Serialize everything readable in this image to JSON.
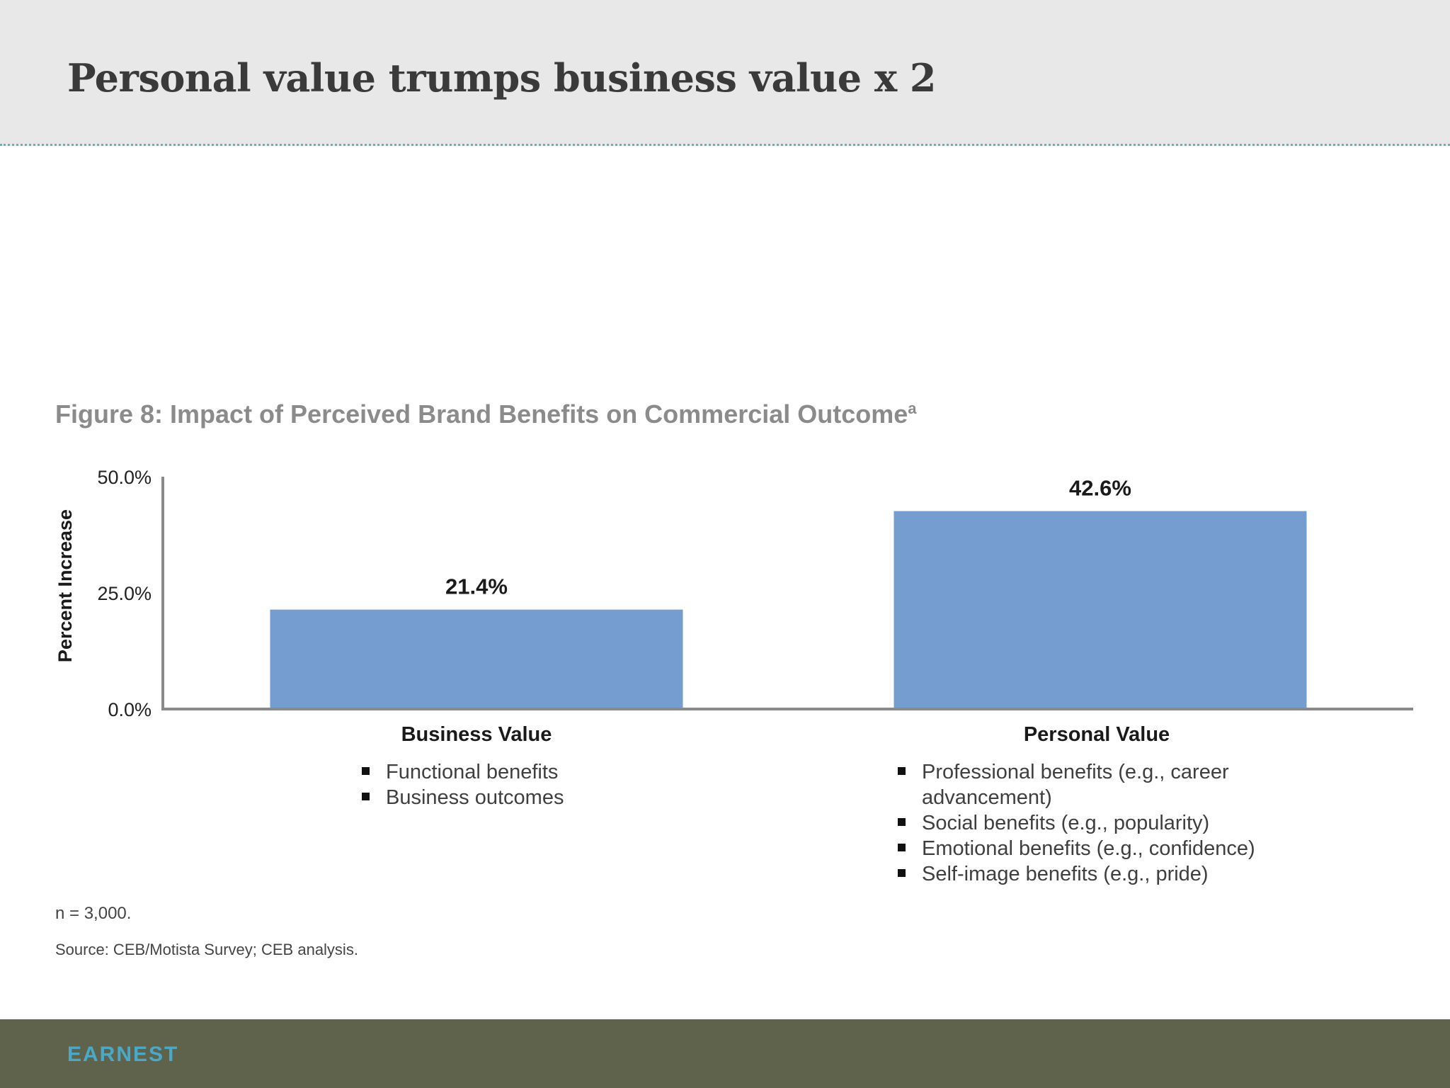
{
  "slide": {
    "title": "Personal value trumps business value x 2"
  },
  "figure": {
    "title": "Figure 8: Impact of Perceived Brand Benefits on Commercial Outcome",
    "title_superscript": "a",
    "note_n": "n = 3,000.",
    "source": "Source: CEB/Motista Survey; CEB analysis."
  },
  "bullets": {
    "business": [
      "Functional benefits",
      "Business outcomes"
    ],
    "personal": [
      "Professional benefits (e.g., career advancement)",
      "Social benefits (e.g., popularity)",
      "Emotional benefits (e.g., confidence)",
      "Self-image benefits (e.g., pride)"
    ]
  },
  "footer": {
    "logo_text": "EARNEST"
  },
  "colors": {
    "bar": "#769dcf",
    "axis": "#8a8a8a",
    "footer": "#5f634b",
    "logo": "#4aa8c8"
  },
  "chart_data": {
    "type": "bar",
    "categories": [
      "Business Value",
      "Personal Value"
    ],
    "values": [
      21.4,
      42.6
    ],
    "data_labels": [
      "21.4%",
      "42.6%"
    ],
    "ylabel": "Percent Increase",
    "xlabel": "",
    "ylim": [
      0,
      50
    ],
    "yticks": [
      0,
      25,
      50
    ],
    "ytick_labels": [
      "0.0%",
      "25.0%",
      "50.0%"
    ],
    "grid": false,
    "legend": "none"
  }
}
